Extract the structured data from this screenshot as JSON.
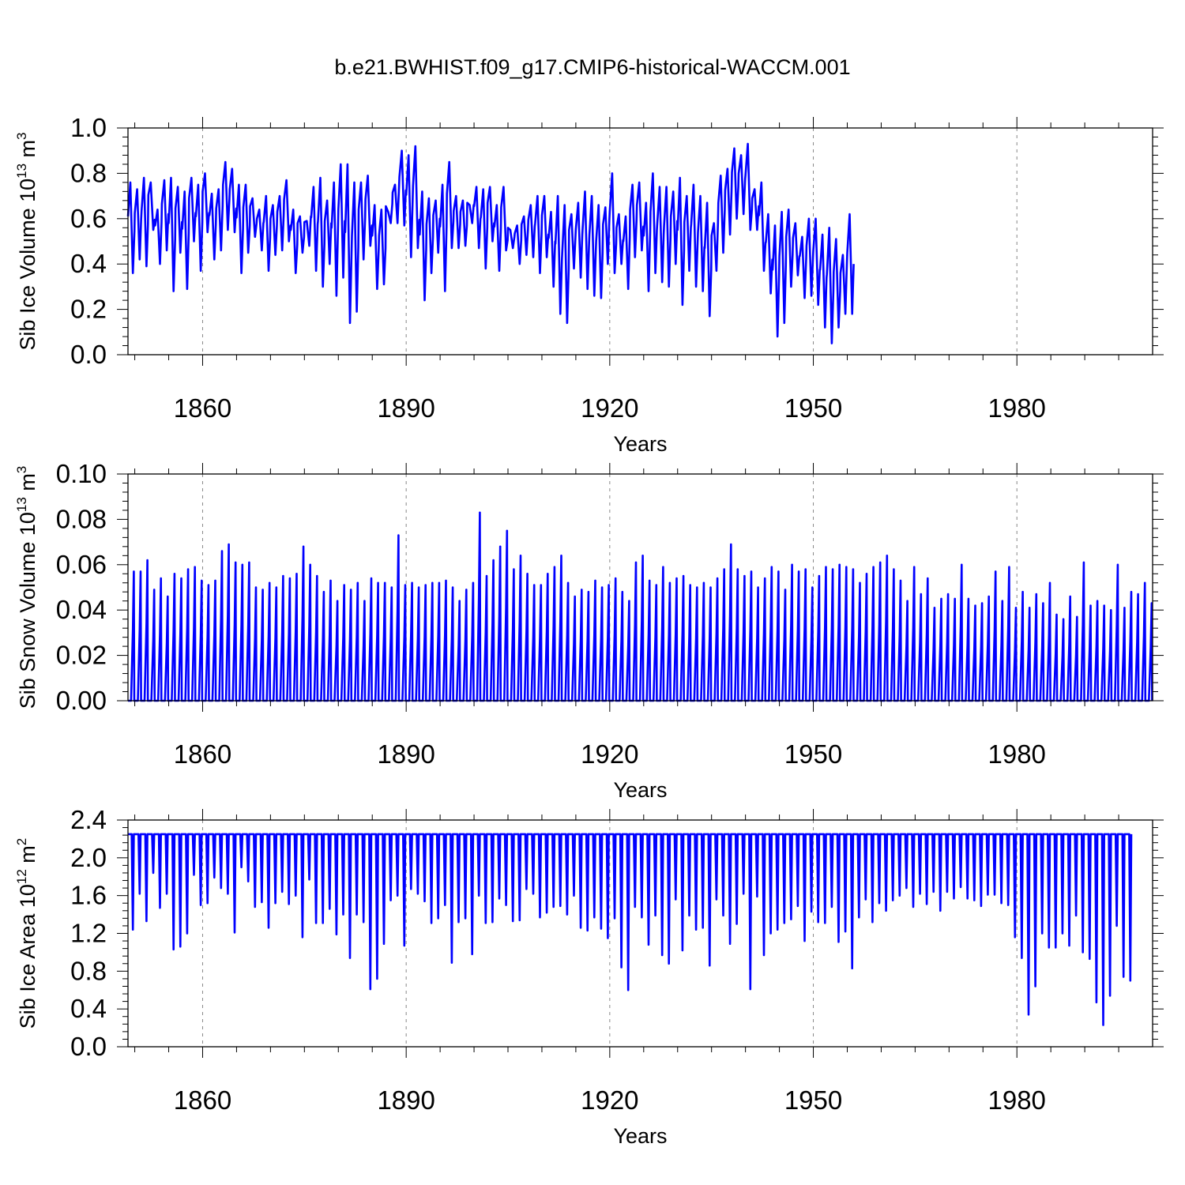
{
  "title": "b.e21.BWHIST.f09_g17.CMIP6-historical-WACCM.001",
  "colors": {
    "series": "#0000ff",
    "axis": "#000000",
    "grid": "#888888"
  },
  "chart_data": [
    {
      "type": "line",
      "name": "sib-ice-volume",
      "ylabel": "Sib Ice Volume 10",
      "ylabel_exp": "13",
      "ylabel_unit": " m",
      "ylabel_unit_exp": "3",
      "xlabel": "Years",
      "xlim": [
        1849,
        2000
      ],
      "ylim": [
        0.0,
        1.0
      ],
      "xticks": [
        1860,
        1890,
        1920,
        1950,
        1980
      ],
      "xtick_labels": [
        "1860",
        "1890",
        "1920",
        "1950",
        "1980"
      ],
      "yticks": [
        0.0,
        0.2,
        0.4,
        0.6,
        0.8,
        1.0
      ],
      "ytick_labels": [
        "0.0",
        "0.2",
        "0.4",
        "0.6",
        "0.8",
        "1.0"
      ],
      "grid": "vertical dashed at major x ticks",
      "series": [
        {
          "name": "Sib Ice Volume",
          "x_start": 1849,
          "step": 1,
          "annual_max": [
            0.76,
            0.73,
            0.78,
            0.76,
            0.64,
            0.77,
            0.78,
            0.74,
            0.72,
            0.78,
            0.75,
            0.8,
            0.71,
            0.73,
            0.85,
            0.82,
            0.75,
            0.75,
            0.69,
            0.64,
            0.7,
            0.66,
            0.7,
            0.77,
            0.64,
            0.61,
            0.59,
            0.74,
            0.78,
            0.68,
            0.76,
            0.84,
            0.84,
            0.76,
            0.76,
            0.79,
            0.66,
            0.64,
            0.63,
            0.75,
            0.9,
            0.88,
            0.92,
            0.72,
            0.69,
            0.68,
            0.75,
            0.85,
            0.7,
            0.68,
            0.66,
            0.74,
            0.73,
            0.74,
            0.66,
            0.74,
            0.55,
            0.57,
            0.61,
            0.66,
            0.7,
            0.7,
            0.63,
            0.7,
            0.66,
            0.62,
            0.67,
            0.72,
            0.7,
            0.66,
            0.65,
            0.8,
            0.62,
            0.61,
            0.75,
            0.76,
            0.67,
            0.8,
            0.74,
            0.74,
            0.72,
            0.78,
            0.7,
            0.75,
            0.7,
            0.67,
            0.58,
            0.79,
            0.82,
            0.91,
            0.88,
            0.93,
            0.73,
            0.76,
            0.62,
            0.57,
            0.63,
            0.64,
            0.58,
            0.52,
            0.6,
            0.6,
            0.53,
            0.56,
            0.51,
            0.44,
            0.62
          ],
          "annual_min": [
            0.36,
            0.42,
            0.39,
            0.55,
            0.4,
            0.46,
            0.28,
            0.45,
            0.29,
            0.5,
            0.37,
            0.54,
            0.42,
            0.46,
            0.55,
            0.54,
            0.36,
            0.45,
            0.52,
            0.46,
            0.37,
            0.44,
            0.46,
            0.5,
            0.36,
            0.45,
            0.48,
            0.37,
            0.3,
            0.4,
            0.26,
            0.34,
            0.14,
            0.19,
            0.42,
            0.48,
            0.29,
            0.31,
            0.58,
            0.58,
            0.57,
            0.43,
            0.47,
            0.24,
            0.36,
            0.45,
            0.28,
            0.47,
            0.47,
            0.48,
            0.58,
            0.47,
            0.38,
            0.5,
            0.37,
            0.46,
            0.47,
            0.4,
            0.44,
            0.43,
            0.36,
            0.43,
            0.3,
            0.18,
            0.14,
            0.38,
            0.34,
            0.29,
            0.26,
            0.25,
            0.4,
            0.36,
            0.4,
            0.29,
            0.43,
            0.46,
            0.28,
            0.36,
            0.32,
            0.3,
            0.4,
            0.22,
            0.37,
            0.3,
            0.28,
            0.17,
            0.37,
            0.45,
            0.53,
            0.6,
            0.62,
            0.55,
            0.55,
            0.37,
            0.27,
            0.08,
            0.14,
            0.3,
            0.35,
            0.25,
            0.26,
            0.22,
            0.12,
            0.05,
            0.12,
            0.18,
            0.18
          ]
        }
      ]
    },
    {
      "type": "line",
      "name": "sib-snow-volume",
      "ylabel": "Sib Snow Volume 10",
      "ylabel_exp": "13",
      "ylabel_unit": " m",
      "ylabel_unit_exp": "3",
      "xlabel": "Years",
      "xlim": [
        1849,
        2000
      ],
      "ylim": [
        0.0,
        0.1
      ],
      "xticks": [
        1860,
        1890,
        1920,
        1950,
        1980
      ],
      "xtick_labels": [
        "1860",
        "1890",
        "1920",
        "1950",
        "1980"
      ],
      "yticks": [
        0.0,
        0.02,
        0.04,
        0.06,
        0.08,
        0.1
      ],
      "ytick_labels": [
        "0.00",
        "0.02",
        "0.04",
        "0.06",
        "0.08",
        "0.10"
      ],
      "grid": "vertical dashed at major x ticks",
      "series": [
        {
          "name": "Sib Snow Volume",
          "x_start": 1849,
          "step": 1,
          "annual_max": [
            0.057,
            0.057,
            0.062,
            0.049,
            0.054,
            0.046,
            0.056,
            0.054,
            0.058,
            0.059,
            0.053,
            0.051,
            0.053,
            0.066,
            0.069,
            0.061,
            0.06,
            0.061,
            0.05,
            0.049,
            0.052,
            0.05,
            0.055,
            0.054,
            0.056,
            0.068,
            0.06,
            0.055,
            0.048,
            0.053,
            0.044,
            0.051,
            0.049,
            0.052,
            0.044,
            0.054,
            0.052,
            0.052,
            0.05,
            0.073,
            0.051,
            0.052,
            0.05,
            0.051,
            0.052,
            0.052,
            0.053,
            0.05,
            0.044,
            0.049,
            0.052,
            0.083,
            0.055,
            0.062,
            0.068,
            0.075,
            0.058,
            0.064,
            0.056,
            0.051,
            0.051,
            0.056,
            0.059,
            0.064,
            0.052,
            0.046,
            0.049,
            0.048,
            0.053,
            0.05,
            0.051,
            0.054,
            0.048,
            0.044,
            0.061,
            0.064,
            0.053,
            0.051,
            0.059,
            0.052,
            0.054,
            0.055,
            0.051,
            0.05,
            0.052,
            0.05,
            0.054,
            0.058,
            0.069,
            0.058,
            0.055,
            0.057,
            0.05,
            0.054,
            0.059,
            0.057,
            0.049,
            0.06,
            0.057,
            0.058,
            0.05,
            0.055,
            0.059,
            0.058,
            0.06,
            0.059,
            0.058,
            0.052,
            0.056,
            0.059,
            0.061,
            0.064,
            0.058,
            0.053,
            0.044,
            0.059,
            0.047,
            0.054,
            0.041,
            0.045,
            0.047,
            0.045,
            0.06,
            0.045,
            0.042,
            0.043,
            0.046,
            0.057,
            0.044,
            0.059,
            0.041,
            0.048,
            0.041,
            0.047,
            0.043,
            0.052,
            0.038,
            0.036,
            0.046,
            0.037,
            0.061,
            0.042,
            0.044,
            0.042,
            0.04,
            0.06,
            0.041,
            0.048,
            0.047,
            0.052,
            0.043
          ],
          "annual_min": 0.0
        }
      ]
    },
    {
      "type": "line",
      "name": "sib-ice-area",
      "ylabel": "Sib Ice Area 10",
      "ylabel_exp": "12",
      "ylabel_unit": " m",
      "ylabel_unit_exp": "2",
      "xlabel": "Years",
      "xlim": [
        1849,
        2000
      ],
      "ylim": [
        0.0,
        2.4
      ],
      "xticks": [
        1860,
        1890,
        1920,
        1950,
        1980
      ],
      "xtick_labels": [
        "1860",
        "1890",
        "1920",
        "1950",
        "1980"
      ],
      "yticks": [
        0.0,
        0.4,
        0.8,
        1.2,
        1.6,
        2.0,
        2.4
      ],
      "ytick_labels": [
        "0.0",
        "0.4",
        "0.8",
        "1.2",
        "1.6",
        "2.0",
        "2.4"
      ],
      "grid": "vertical dashed at major x ticks",
      "series": [
        {
          "name": "Sib Ice Area",
          "x_start": 1849,
          "step": 1,
          "annual_max": 2.25,
          "annual_min": [
            1.24,
            1.62,
            1.33,
            1.84,
            1.47,
            1.62,
            1.03,
            1.06,
            1.2,
            1.82,
            1.5,
            1.52,
            1.79,
            1.68,
            1.62,
            1.21,
            1.9,
            1.75,
            1.48,
            1.53,
            1.26,
            1.52,
            1.64,
            1.51,
            1.6,
            1.16,
            1.77,
            1.31,
            1.31,
            1.46,
            1.19,
            1.4,
            0.94,
            1.4,
            1.32,
            0.61,
            0.72,
            1.09,
            1.55,
            1.6,
            1.07,
            1.67,
            1.62,
            1.54,
            1.31,
            1.36,
            1.5,
            0.89,
            1.32,
            1.36,
            0.98,
            1.6,
            1.31,
            1.32,
            1.57,
            1.5,
            1.33,
            1.34,
            1.67,
            1.62,
            1.37,
            1.42,
            1.48,
            1.49,
            1.4,
            1.6,
            1.26,
            1.23,
            1.37,
            1.25,
            1.15,
            1.36,
            0.84,
            0.6,
            1.48,
            1.37,
            1.08,
            1.39,
            0.97,
            0.88,
            1.56,
            1.02,
            1.39,
            1.24,
            1.26,
            0.86,
            1.56,
            1.39,
            1.09,
            1.3,
            1.62,
            0.61,
            1.59,
            0.97,
            1.2,
            1.24,
            1.31,
            1.35,
            1.49,
            1.12,
            1.43,
            1.32,
            1.31,
            1.48,
            1.11,
            1.22,
            0.83,
            1.37,
            1.56,
            1.32,
            1.52,
            1.44,
            1.55,
            1.6,
            1.68,
            1.48,
            1.62,
            1.51,
            1.64,
            1.44,
            1.64,
            1.57,
            1.69,
            1.57,
            1.55,
            1.49,
            1.61,
            1.61,
            1.52,
            1.5,
            1.16,
            0.94,
            0.34,
            0.64,
            1.2,
            1.05,
            1.05,
            1.2,
            1.07,
            1.39,
            1.0,
            0.93,
            0.47,
            0.23,
            0.54,
            1.28,
            0.74,
            0.7
          ]
        }
      ]
    }
  ]
}
